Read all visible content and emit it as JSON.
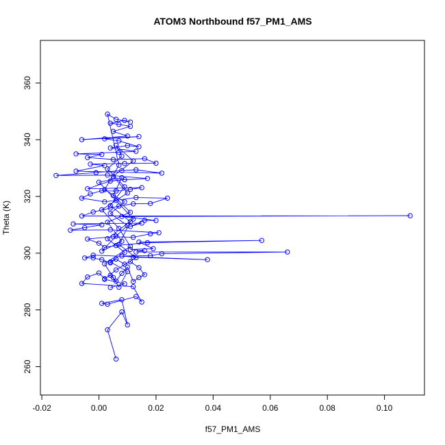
{
  "chart_data": {
    "type": "scatter",
    "title": "ATOM3 Northbound f57_PM1_AMS",
    "xlabel": "f57_PM1_AMS",
    "ylabel": "Theta (K)",
    "xlim": [
      -0.0205,
      0.114
    ],
    "ylim": [
      250,
      375
    ],
    "xticks": [
      -0.02,
      0,
      0.02,
      0.04,
      0.06,
      0.08,
      0.1
    ],
    "xtick_labels": [
      "-0.02",
      "0.00",
      "0.02",
      "0.04",
      "0.06",
      "0.08",
      "0.10"
    ],
    "yticks": [
      260,
      280,
      300,
      320,
      340,
      360
    ],
    "ytick_labels": [
      "260",
      "280",
      "300",
      "320",
      "340",
      "360"
    ],
    "series_style": {
      "mode": "lines+markers",
      "marker": "open-circle",
      "color": "#0000ff"
    },
    "grid": false,
    "legend": "none",
    "points": [
      [
        0.006,
        262.7
      ],
      [
        0.003,
        273.0
      ],
      [
        0.008,
        279.3
      ],
      [
        0.01,
        274.7
      ],
      [
        0.008,
        283.6
      ],
      [
        0.001,
        282.3
      ],
      [
        0.003,
        282.0
      ],
      [
        0.013,
        284.7
      ],
      [
        0.015,
        282.8
      ],
      [
        0.012,
        288.2
      ],
      [
        -0.006,
        289.3
      ],
      [
        -0.004,
        291.6
      ],
      [
        0.0,
        293.0
      ],
      [
        0.002,
        291.0
      ],
      [
        0.004,
        292.2
      ],
      [
        0.006,
        290.1
      ],
      [
        0.008,
        292.9
      ],
      [
        0.01,
        295.1
      ],
      [
        0.012,
        290.0
      ],
      [
        0.014,
        291.4
      ],
      [
        0.016,
        292.4
      ],
      [
        0.014,
        294.9
      ],
      [
        0.011,
        297.0
      ],
      [
        0.009,
        296.1
      ],
      [
        0.006,
        297.9
      ],
      [
        0.004,
        296.6
      ],
      [
        0.001,
        297.7
      ],
      [
        -0.002,
        298.3
      ],
      [
        -0.005,
        298.3
      ],
      [
        -0.002,
        299.3
      ],
      [
        0.038,
        297.7
      ],
      [
        0.012,
        298.6
      ],
      [
        0.008,
        299.0
      ],
      [
        0.018,
        299.1
      ],
      [
        0.022,
        299.8
      ],
      [
        0.066,
        300.4
      ],
      [
        0.013,
        300.4
      ],
      [
        0.016,
        300.9
      ],
      [
        0.011,
        301.3
      ],
      [
        0.019,
        301.6
      ],
      [
        0.014,
        303.9
      ],
      [
        0.057,
        304.5
      ],
      [
        0.017,
        303.7
      ],
      [
        0.006,
        302.7
      ],
      [
        0.002,
        302.0
      ],
      [
        0.0,
        303.5
      ],
      [
        -0.004,
        305.0
      ],
      [
        0.005,
        305.8
      ],
      [
        0.012,
        305.6
      ],
      [
        0.018,
        306.8
      ],
      [
        0.021,
        307.2
      ],
      [
        0.004,
        308.2
      ],
      [
        -0.01,
        308.1
      ],
      [
        -0.005,
        309.0
      ],
      [
        0.001,
        310.0
      ],
      [
        -0.009,
        310.3
      ],
      [
        0.015,
        310.6
      ],
      [
        0.011,
        309.4
      ],
      [
        0.016,
        311.6
      ],
      [
        0.02,
        311.5
      ],
      [
        0.008,
        312.9
      ],
      [
        0.109,
        313.2
      ],
      [
        -0.006,
        313.1
      ],
      [
        -0.002,
        314.5
      ],
      [
        0.004,
        315.9
      ],
      [
        0.007,
        316.6
      ],
      [
        0.012,
        317.4
      ],
      [
        0.018,
        317.5
      ],
      [
        0.024,
        319.4
      ],
      [
        0.013,
        319.6
      ],
      [
        0.002,
        318.1
      ],
      [
        -0.006,
        319.4
      ],
      [
        -0.003,
        320.9
      ],
      [
        0.001,
        322.0
      ],
      [
        0.006,
        321.9
      ],
      [
        0.011,
        322.5
      ],
      [
        0.015,
        323.1
      ],
      [
        -0.004,
        322.7
      ],
      [
        0.004,
        325.4
      ],
      [
        0.009,
        325.9
      ],
      [
        0.017,
        326.3
      ],
      [
        0.003,
        327.5
      ],
      [
        -0.015,
        327.4
      ],
      [
        -0.001,
        328.4
      ],
      [
        0.008,
        329.1
      ],
      [
        0.013,
        329.4
      ],
      [
        0.022,
        328.2
      ],
      [
        -0.008,
        328.9
      ],
      [
        0.002,
        330.9
      ],
      [
        -0.003,
        331.4
      ],
      [
        0.009,
        331.6
      ],
      [
        0.02,
        331.7
      ],
      [
        0.016,
        333.3
      ],
      [
        0.005,
        333.0
      ],
      [
        -0.004,
        333.7
      ],
      [
        0.001,
        334.8
      ],
      [
        -0.008,
        335.0
      ],
      [
        0.007,
        335.6
      ],
      [
        0.013,
        335.9
      ],
      [
        0.004,
        337.1
      ],
      [
        0.01,
        337.9
      ],
      [
        0.014,
        337.5
      ],
      [
        0.007,
        339.6
      ],
      [
        0.002,
        340.3
      ],
      [
        0.014,
        341.1
      ],
      [
        -0.006,
        340.0
      ],
      [
        0.01,
        341.3
      ],
      [
        0.005,
        342.9
      ],
      [
        0.011,
        344.7
      ],
      [
        0.007,
        345.4
      ],
      [
        0.004,
        345.8
      ],
      [
        0.009,
        346.8
      ],
      [
        0.011,
        346.2
      ],
      [
        0.006,
        347.2
      ],
      [
        0.003,
        349.0
      ],
      [
        0.007,
        331.0
      ],
      [
        0.002,
        322.4
      ],
      [
        0.009,
        318.1
      ],
      [
        0.004,
        314.0
      ],
      [
        0.01,
        309.7
      ],
      [
        0.006,
        306.0
      ],
      [
        0.001,
        300.7
      ],
      [
        0.008,
        304.2
      ],
      [
        0.003,
        310.9
      ],
      [
        0.011,
        314.4
      ],
      [
        0.005,
        320.3
      ],
      [
        0.008,
        326.6
      ],
      [
        0.0,
        325.0
      ],
      [
        0.006,
        318.6
      ],
      [
        0.012,
        312.0
      ],
      [
        0.003,
        305.1
      ],
      [
        0.009,
        300.3
      ],
      [
        0.004,
        296.9
      ],
      [
        0.01,
        293.5
      ],
      [
        0.007,
        288.0
      ],
      [
        0.005,
        291.4
      ],
      [
        0.002,
        296.2
      ],
      [
        0.011,
        302.4
      ],
      [
        0.007,
        308.7
      ],
      [
        0.001,
        315.3
      ],
      [
        0.01,
        321.2
      ],
      [
        0.005,
        327.1
      ],
      [
        0.012,
        332.5
      ],
      [
        0.006,
        338.0
      ],
      [
        0.008,
        334.2
      ],
      [
        0.003,
        329.7
      ],
      [
        0.009,
        323.4
      ],
      [
        0.004,
        316.8
      ],
      [
        0.011,
        311.1
      ],
      [
        0.007,
        303.1
      ],
      [
        0.013,
        298.4
      ],
      [
        0.006,
        294.1
      ],
      [
        0.002,
        290.8
      ],
      [
        0.009,
        289.2
      ],
      [
        0.004,
        287.9
      ]
    ]
  }
}
